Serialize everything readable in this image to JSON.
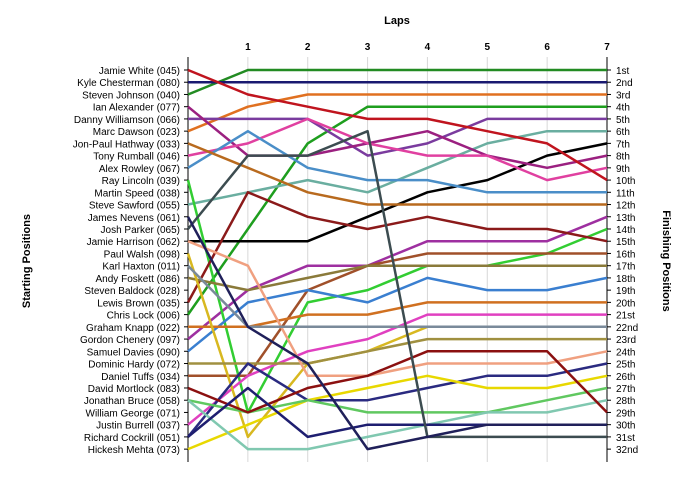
{
  "chart_data": {
    "type": "line",
    "title": "Laps",
    "ylabel_left": "Starting Positions",
    "ylabel_right": "Finishing Positions",
    "x": [
      0,
      1,
      2,
      3,
      4,
      5,
      6,
      7
    ],
    "x_tick_labels": [
      "1",
      "2",
      "3",
      "4",
      "5",
      "6",
      "7"
    ],
    "y_range": [
      1,
      32
    ],
    "y_inverted": true,
    "grid": "vertical lines at each lap",
    "starting_labels": [
      "Jamie White (045)",
      "Kyle Chesterman (080)",
      "Steven Johnson (040)",
      "Ian Alexander (077)",
      "Danny Williamson (066)",
      "Marc Dawson (023)",
      "Jon-Paul Hathway (033)",
      "Tony Rumball (046)",
      "Alex Rowley (067)",
      "Ray Lincoln (039)",
      "Martin Speed (038)",
      "Steve Sawford (055)",
      "James Nevens (061)",
      "Josh Parker (065)",
      "Jamie Harrison (062)",
      "Paul Walsh (098)",
      "Karl Haxton (011)",
      "Andy Foskett (086)",
      "Steven Baldock (028)",
      "Lewis Brown (035)",
      "Chris Lock (006)",
      "Graham Knapp (022)",
      "Gordon Chenery (097)",
      "Samuel Davies (090)",
      "Dominic Hardy (072)",
      "Daniel Tuffs (034)",
      "David Mortlock (083)",
      "Jonathan Bruce (058)",
      "William George (071)",
      "Justin Burrell (037)",
      "Richard Cockrill (051)",
      "Hickesh Mehta (073)"
    ],
    "finishing_labels": [
      "1st",
      "2nd",
      "3rd",
      "4th",
      "5th",
      "6th",
      "7th",
      "8th",
      "9th",
      "10th",
      "11th",
      "12th",
      "13th",
      "14th",
      "15th",
      "16th",
      "17th",
      "18th",
      "19th",
      "20th",
      "21st",
      "22nd",
      "23rd",
      "24th",
      "25th",
      "26th",
      "27th",
      "28th",
      "29th",
      "30th",
      "31st",
      "32nd"
    ],
    "series": [
      {
        "color": "#228b22",
        "positions": [
          3,
          1,
          1,
          1,
          1,
          1,
          1,
          1
        ]
      },
      {
        "color": "#191970",
        "positions": [
          2,
          2,
          2,
          2,
          2,
          2,
          2,
          2
        ]
      },
      {
        "color": "#e07020",
        "positions": [
          6,
          4,
          3,
          3,
          3,
          3,
          3,
          3
        ]
      },
      {
        "color": "#1e9e1e",
        "positions": [
          21,
          14,
          7,
          4,
          4,
          4,
          4,
          4
        ]
      },
      {
        "color": "#7a3b9e",
        "positions": [
          5,
          5,
          5,
          8,
          7,
          5,
          5,
          5
        ]
      },
      {
        "color": "#6aaea0",
        "positions": [
          12,
          11,
          10,
          11,
          9,
          7,
          6,
          6
        ]
      },
      {
        "color": "#000000",
        "positions": [
          15,
          15,
          15,
          13,
          11,
          10,
          8,
          7
        ]
      },
      {
        "color": "#9b2080",
        "positions": [
          4,
          8,
          8,
          7,
          6,
          8,
          9,
          8
        ]
      },
      {
        "color": "#e040a0",
        "positions": [
          8,
          7,
          5,
          7,
          8,
          8,
          10,
          9
        ]
      },
      {
        "color": "#c0141e",
        "positions": [
          1,
          3,
          4,
          5,
          5,
          6,
          7,
          10
        ]
      },
      {
        "color": "#4a8ec8",
        "positions": [
          9,
          6,
          9,
          10,
          10,
          11,
          11,
          11
        ]
      },
      {
        "color": "#b86a1e",
        "positions": [
          7,
          9,
          11,
          12,
          12,
          12,
          12,
          12
        ]
      },
      {
        "color": "#9e2fa0",
        "positions": [
          23,
          19,
          17,
          17,
          15,
          15,
          15,
          13
        ]
      },
      {
        "color": "#32cd32",
        "positions": [
          10,
          29,
          20,
          19,
          17,
          17,
          16,
          14
        ]
      },
      {
        "color": "#8b1a1a",
        "positions": [
          20,
          11,
          13,
          14,
          13,
          14,
          14,
          15
        ]
      },
      {
        "color": "#a0502a",
        "positions": [
          26,
          26,
          19,
          17,
          16,
          16,
          16,
          16
        ]
      },
      {
        "color": "#8a7a3a",
        "positions": [
          18,
          19,
          18,
          17,
          17,
          17,
          17,
          17
        ]
      },
      {
        "color": "#3a7fd0",
        "positions": [
          24,
          20,
          19,
          20,
          18,
          19,
          19,
          18
        ]
      },
      {
        "color": "#d07020",
        "positions": [
          22,
          22,
          21,
          21,
          20,
          20,
          20,
          20
        ]
      },
      {
        "color": "#e040c0",
        "positions": [
          30,
          26,
          24,
          23,
          21,
          21,
          21,
          21
        ]
      },
      {
        "color": "#d8b820",
        "positions": [
          16,
          31,
          25,
          24,
          22,
          22,
          22,
          22
        ]
      },
      {
        "color": "#a09040",
        "positions": [
          25,
          25,
          25,
          24,
          23,
          23,
          23,
          23
        ]
      },
      {
        "color": "#f0a080",
        "positions": [
          15,
          17,
          26,
          26,
          25,
          25,
          25,
          24
        ]
      },
      {
        "color": "#2a2a80",
        "positions": [
          31,
          25,
          28,
          28,
          27,
          26,
          26,
          25
        ]
      },
      {
        "color": "#e8d800",
        "positions": [
          32,
          30,
          28,
          27,
          26,
          27,
          27,
          26
        ]
      },
      {
        "color": "#60c860",
        "positions": [
          28,
          29,
          28,
          29,
          29,
          29,
          28,
          27
        ]
      },
      {
        "color": "#80c8b0",
        "positions": [
          28,
          32,
          32,
          31,
          30,
          29,
          29,
          28
        ]
      },
      {
        "color": "#8b1010",
        "positions": [
          27,
          29,
          27,
          26,
          24,
          24,
          24,
          29
        ]
      },
      {
        "color": "#7a8a9a",
        "positions": [
          17,
          22,
          22,
          22,
          22,
          22,
          22,
          22
        ]
      },
      {
        "color": "#1e1e70",
        "positions": [
          31,
          27,
          31,
          30,
          30,
          30,
          30,
          30
        ]
      },
      {
        "color": "#3c4c50",
        "positions": [
          14,
          8,
          8,
          6,
          31,
          31,
          31,
          31
        ]
      },
      {
        "color": "#20205a",
        "positions": [
          13,
          22,
          25,
          32,
          31,
          30,
          30,
          30
        ]
      }
    ]
  }
}
